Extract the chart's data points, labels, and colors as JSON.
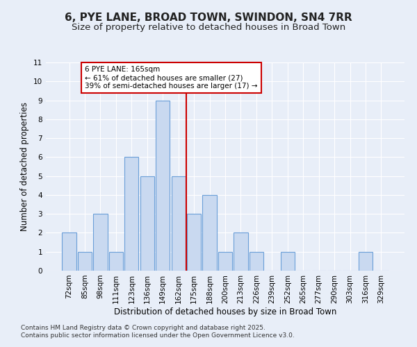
{
  "title": "6, PYE LANE, BROAD TOWN, SWINDON, SN4 7RR",
  "subtitle": "Size of property relative to detached houses in Broad Town",
  "xlabel": "Distribution of detached houses by size in Broad Town",
  "ylabel": "Number of detached properties",
  "categories": [
    "72sqm",
    "85sqm",
    "98sqm",
    "111sqm",
    "123sqm",
    "136sqm",
    "149sqm",
    "162sqm",
    "175sqm",
    "188sqm",
    "200sqm",
    "213sqm",
    "226sqm",
    "239sqm",
    "252sqm",
    "265sqm",
    "277sqm",
    "290sqm",
    "303sqm",
    "316sqm",
    "329sqm"
  ],
  "values": [
    2,
    1,
    3,
    1,
    6,
    5,
    9,
    5,
    3,
    4,
    1,
    2,
    1,
    0,
    1,
    0,
    0,
    0,
    0,
    1,
    0
  ],
  "bar_color": "#c9d9f0",
  "bar_edge_color": "#6a9fd8",
  "vline_x_index": 7,
  "vline_color": "#cc0000",
  "annotation_text": "6 PYE LANE: 165sqm\n← 61% of detached houses are smaller (27)\n39% of semi-detached houses are larger (17) →",
  "annotation_box_color": "#ffffff",
  "annotation_box_edge_color": "#cc0000",
  "ylim": [
    0,
    11
  ],
  "yticks": [
    0,
    1,
    2,
    3,
    4,
    5,
    6,
    7,
    8,
    9,
    10,
    11
  ],
  "footer_line1": "Contains HM Land Registry data © Crown copyright and database right 2025.",
  "footer_line2": "Contains public sector information licensed under the Open Government Licence v3.0.",
  "bg_color": "#e8eef8",
  "title_fontsize": 11,
  "subtitle_fontsize": 9.5,
  "axis_fontsize": 8.5,
  "tick_fontsize": 7.5,
  "footer_fontsize": 6.5
}
